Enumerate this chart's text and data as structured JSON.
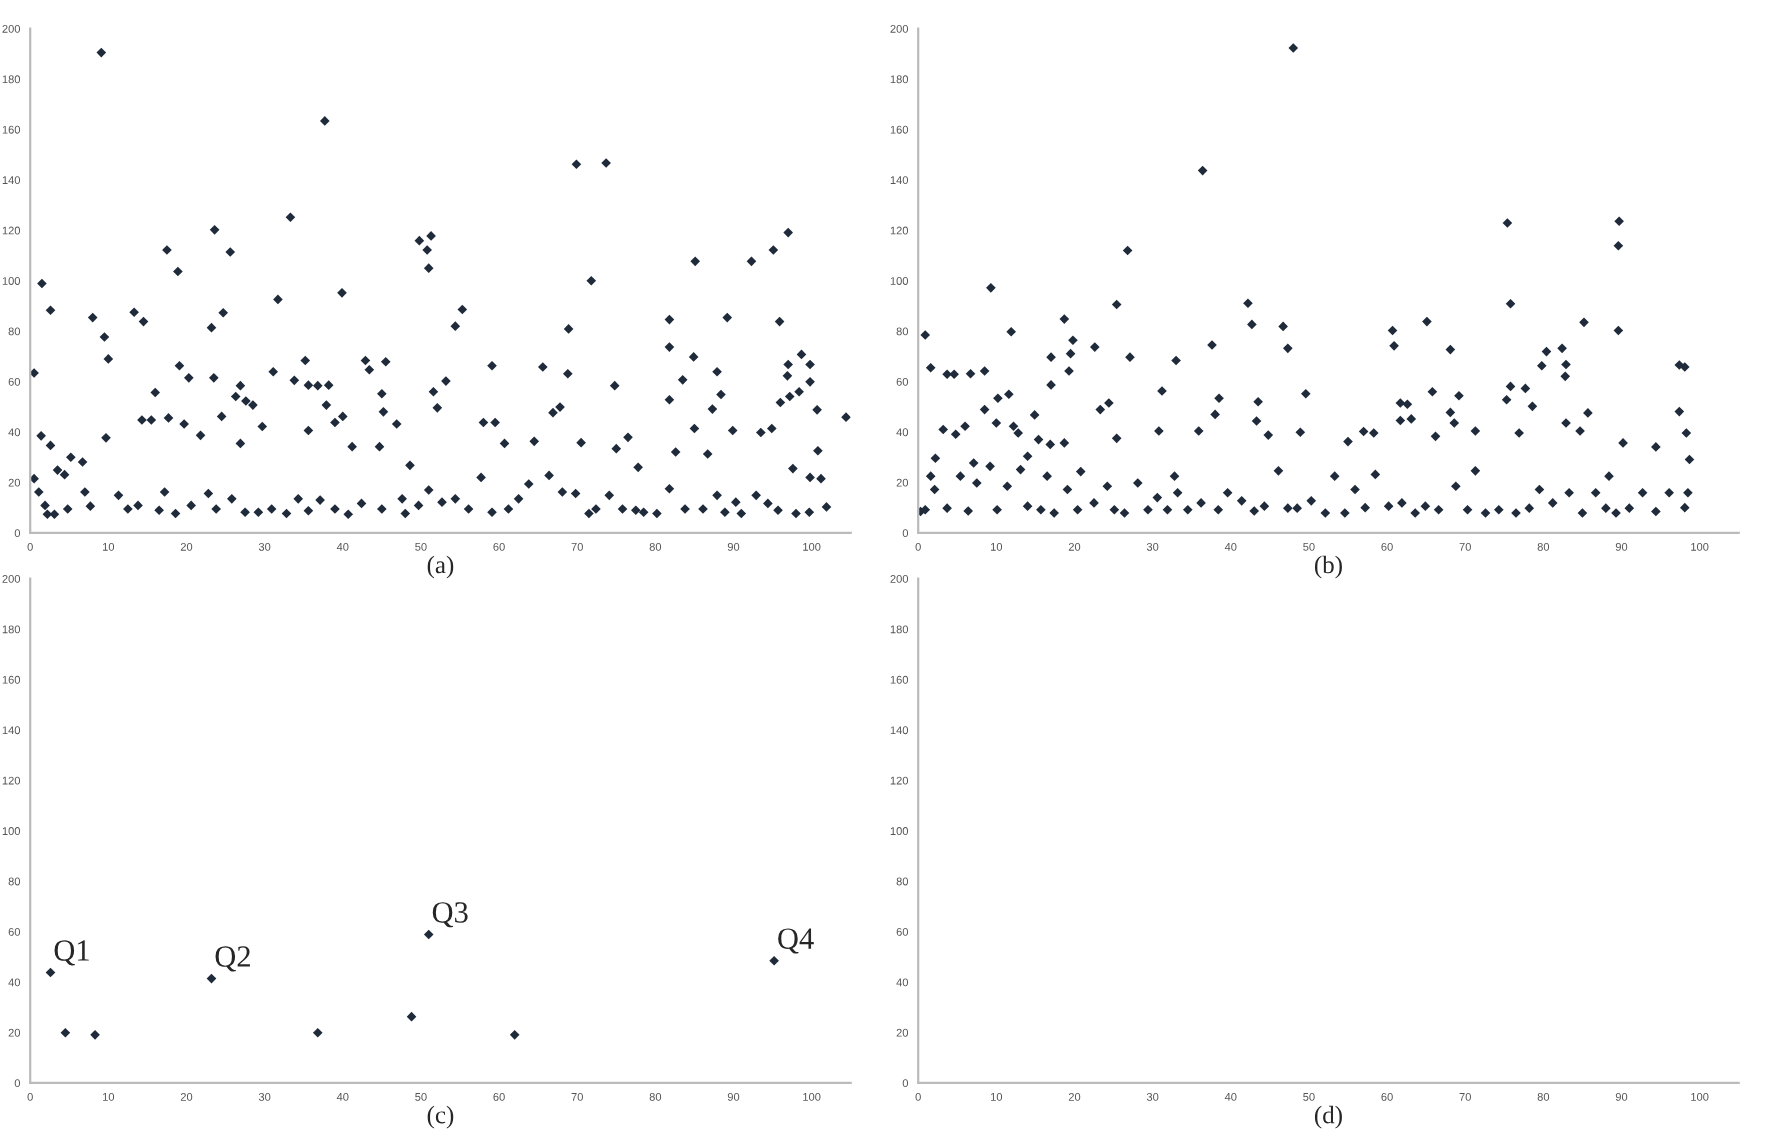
{
  "chart_data": [
    {
      "type": "scatter",
      "xlabel": "(a)",
      "marker": "diamond",
      "color": "#1f2a3a",
      "grid": false,
      "xlim": [
        0,
        105
      ],
      "ylim": [
        0,
        200
      ],
      "xticks": [
        0,
        10,
        20,
        30,
        40,
        50,
        60,
        70,
        80,
        90,
        100
      ],
      "yticks": [
        0,
        20,
        40,
        60,
        80,
        100,
        120,
        140,
        160,
        180,
        200
      ],
      "x": [
        9.1,
        37.7,
        69.9,
        73.7,
        33.3,
        23.6,
        97.0,
        51.3,
        49.8,
        50.8,
        17.5,
        25.6,
        95.1,
        51.0,
        85.1,
        92.3,
        18.9,
        1.5,
        71.8,
        39.9,
        31.7,
        55.3,
        2.6,
        13.3,
        24.7,
        89.2,
        8.0,
        14.5,
        81.8,
        95.9,
        54.4,
        23.2,
        68.9,
        9.5,
        81.8,
        98.7,
        10.0,
        84.9,
        35.2,
        42.9,
        45.5,
        97.0,
        99.8,
        19.1,
        59.1,
        65.6,
        43.4,
        87.9,
        31.1,
        0.5,
        68.8,
        96.9,
        20.3,
        23.5,
        33.8,
        53.2,
        83.5,
        99.8,
        26.9,
        36.8,
        38.2,
        35.6,
        74.8,
        98.4,
        16.0,
        51.6,
        45.0,
        88.4,
        97.2,
        26.3,
        27.6,
        81.8,
        96.0,
        37.9,
        28.5,
        67.8,
        52.1,
        87.3,
        100.7,
        45.2,
        66.9,
        24.5,
        40.0,
        17.7,
        104.4,
        14.3,
        15.5,
        58.0,
        59.5,
        46.9,
        39.0,
        19.7,
        85.0,
        35.6,
        89.9,
        29.7,
        93.5,
        1.4,
        9.7,
        21.8,
        76.5,
        60.7,
        64.5,
        2.6,
        44.7,
        26.9,
        41.2,
        94.9,
        100.8,
        75.0,
        82.6,
        5.2,
        70.5,
        86.7,
        48.6,
        97.6,
        77.8,
        3.5,
        57.7,
        51.0,
        0.5,
        1.1,
        1.9,
        2.2,
        3.1,
        4.4,
        4.8,
        6.7,
        7.0,
        7.7,
        11.3,
        12.5,
        13.8,
        16.5,
        17.2,
        18.6,
        20.6,
        22.8,
        23.8,
        25.8,
        27.5,
        29.2,
        30.9,
        32.8,
        34.3,
        35.6,
        37.1,
        39.0,
        40.7,
        42.4,
        45.0,
        47.6,
        48.0,
        49.7,
        52.7,
        54.4,
        56.1,
        59.1,
        61.2,
        62.5,
        63.8,
        66.4,
        68.1,
        69.8,
        71.5,
        72.4,
        74.1,
        75.8,
        77.5,
        78.5,
        80.2,
        81.8,
        83.8,
        86.1,
        87.9,
        88.9,
        90.3,
        91.0,
        92.9,
        94.4,
        95.7,
        98.0,
        99.7,
        101.9,
        99.8,
        101.2
      ],
      "values": [
        190.5,
        163.4,
        146.2,
        146.7,
        125.2,
        120.2,
        119.1,
        117.8,
        115.9,
        112.2,
        112.2,
        111.4,
        112.2,
        105.0,
        107.7,
        107.7,
        103.7,
        98.9,
        100,
        95.2,
        92.6,
        88.6,
        88.3,
        87.5,
        87.3,
        85.4,
        85.4,
        83.8,
        84.6,
        83.8,
        82.0,
        81.4,
        80.9,
        77.7,
        73.7,
        70.8,
        69.0,
        69.8,
        68.4,
        68.4,
        67.9,
        66.8,
        66.8,
        66.3,
        66.3,
        65.8,
        64.7,
        63.9,
        63.9,
        63.4,
        63.1,
        62.3,
        61.5,
        61.5,
        60.5,
        60.2,
        60.7,
        59.9,
        58.4,
        58.4,
        58.6,
        58.6,
        58.4,
        56.0,
        55.7,
        56.0,
        55.2,
        54.9,
        54.1,
        54.1,
        52.3,
        52.8,
        51.7,
        50.7,
        50.7,
        49.9,
        49.6,
        49.1,
        48.8,
        48.0,
        47.7,
        46.2,
        46.2,
        45.6,
        45.9,
        44.8,
        44.8,
        43.8,
        43.8,
        43.2,
        43.8,
        43.2,
        41.4,
        40.6,
        40.6,
        42.2,
        39.8,
        38.5,
        37.7,
        38.7,
        37.9,
        35.5,
        36.3,
        34.7,
        34.2,
        35.5,
        34.2,
        41.4,
        32.6,
        33.4,
        32.1,
        30.0,
        35.8,
        31.3,
        26.8,
        25.5,
        26.0,
        24.9,
        22.0,
        17.0,
        21.5,
        16.2,
        10.9,
        7.4,
        7.4,
        23.1,
        9.5,
        28.1,
        16.2,
        10.6,
        14.9,
        9.5,
        10.9,
        9.0,
        16.2,
        7.7,
        10.9,
        15.6,
        9.5,
        13.5,
        8.2,
        8.2,
        9.5,
        7.7,
        13.5,
        8.8,
        13.0,
        9.5,
        7.4,
        11.7,
        9.5,
        13.5,
        7.7,
        10.9,
        12.2,
        13.5,
        9.5,
        8.2,
        9.5,
        13.5,
        19.4,
        22.8,
        16.2,
        15.6,
        7.7,
        9.5,
        14.9,
        9.5,
        9.0,
        8.2,
        7.7,
        17.5,
        9.5,
        9.5,
        14.9,
        8.2,
        12.2,
        7.7,
        14.9,
        11.7,
        9.0,
        7.7,
        8.2,
        10.3,
        22.0,
        21.5
      ]
    },
    {
      "type": "scatter",
      "xlabel": "(b)",
      "marker": "diamond",
      "color": "#1f2a3a",
      "grid": false,
      "xlim": [
        0,
        105
      ],
      "ylim": [
        0,
        200
      ],
      "xticks": [
        0,
        10,
        20,
        30,
        40,
        50,
        60,
        70,
        80,
        90,
        100
      ],
      "yticks": [
        0,
        20,
        40,
        60,
        80,
        100,
        120,
        140,
        160,
        180,
        200
      ],
      "x": [
        48.0,
        36.4,
        75.4,
        89.7,
        89.6,
        26.8,
        9.3,
        25.4,
        42.2,
        75.8,
        42.7,
        65.1,
        85.2,
        18.7,
        46.7,
        60.7,
        89.6,
        11.9,
        0.9,
        47.3,
        60.9,
        19.8,
        22.6,
        37.6,
        68.1,
        80.4,
        82.4,
        19.5,
        27.1,
        33.0,
        17.0,
        82.9,
        79.8,
        97.4,
        98.1,
        1.6,
        3.7,
        4.6,
        82.8,
        8.5,
        19.3,
        6.7,
        17.0,
        75.8,
        77.7,
        31.2,
        65.8,
        11.6,
        49.6,
        69.2,
        10.2,
        43.5,
        38.5,
        61.7,
        62.6,
        75.3,
        24.4,
        78.6,
        23.3,
        43.3,
        97.4,
        85.7,
        68.1,
        14.9,
        38.0,
        8.5,
        57.0,
        58.3,
        63.1,
        61.7,
        68.6,
        84.7,
        82.9,
        3.2,
        4.8,
        6.0,
        10.0,
        12.2,
        12.8,
        15.4,
        16.9,
        18.7,
        25.4,
        30.8,
        35.9,
        44.8,
        48.9,
        55.0,
        66.2,
        71.3,
        76.9,
        90.2,
        94.4,
        98.3,
        2.2,
        0.3,
        0.9,
        1.6,
        2.1,
        3.7,
        5.4,
        6.4,
        7.5,
        9.2,
        10.1,
        11.4,
        13.1,
        14.0,
        15.7,
        16.5,
        17.4,
        19.1,
        20.4,
        22.5,
        24.2,
        25.1,
        26.4,
        28.1,
        29.4,
        30.6,
        31.9,
        33.2,
        34.5,
        36.2,
        38.4,
        39.6,
        41.4,
        43.0,
        44.3,
        46.1,
        47.3,
        48.5,
        50.3,
        52.1,
        53.3,
        54.6,
        55.9,
        57.2,
        60.2,
        61.9,
        63.6,
        64.9,
        66.6,
        68.8,
        70.3,
        72.6,
        74.3,
        76.5,
        78.2,
        79.5,
        81.2,
        83.3,
        85.0,
        86.7,
        88.0,
        89.3,
        91.0,
        92.7,
        94.4,
        96.1,
        98.1,
        98.5,
        98.7,
        88.4,
        71.3,
        58.5,
        32.8,
        20.8,
        14.0,
        7.1
      ],
      "values": [
        192.3,
        143.7,
        122.9,
        123.6,
        113.9,
        112.0,
        97.2,
        90.6,
        91.1,
        90.9,
        82.7,
        83.8,
        83.5,
        84.8,
        81.9,
        80.3,
        80.3,
        79.8,
        78.5,
        73.2,
        74.2,
        76.4,
        73.7,
        74.5,
        72.7,
        71.9,
        73.2,
        71.1,
        69.7,
        68.4,
        69.7,
        66.8,
        66.3,
        66.6,
        65.8,
        65.5,
        62.9,
        62.9,
        62.1,
        64.2,
        64.2,
        63.1,
        58.7,
        58.1,
        57.3,
        56.3,
        56.0,
        55.0,
        55.2,
        54.4,
        53.4,
        52.0,
        53.4,
        51.5,
        51.0,
        52.8,
        51.5,
        50.2,
        48.9,
        44.4,
        48.1,
        47.6,
        47.8,
        46.8,
        47.0,
        48.9,
        40.2,
        39.6,
        45.2,
        44.6,
        43.6,
        40.4,
        43.6,
        41.0,
        39.1,
        42.3,
        43.6,
        42.3,
        39.6,
        37.0,
        35.1,
        35.7,
        37.5,
        40.4,
        40.4,
        38.8,
        39.9,
        36.2,
        38.3,
        40.4,
        39.6,
        35.7,
        34.1,
        39.6,
        29.6,
        8.5,
        9.2,
        22.5,
        17.2,
        9.8,
        22.5,
        8.7,
        19.8,
        26.4,
        9.2,
        18.5,
        25.1,
        10.6,
        9.2,
        22.5,
        7.9,
        17.2,
        9.2,
        11.9,
        18.5,
        9.2,
        7.9,
        19.8,
        9.2,
        14.0,
        9.2,
        15.9,
        9.2,
        11.9,
        9.2,
        15.9,
        12.7,
        8.7,
        10.6,
        24.6,
        9.8,
        9.8,
        12.7,
        7.9,
        22.5,
        7.9,
        17.2,
        10.0,
        10.6,
        11.9,
        7.9,
        10.6,
        9.2,
        18.5,
        9.2,
        7.9,
        9.2,
        7.9,
        9.8,
        17.2,
        11.9,
        15.9,
        7.9,
        15.9,
        9.8,
        7.9,
        9.8,
        15.9,
        8.5,
        15.9,
        10.0,
        15.9,
        29.1,
        22.5,
        24.6,
        23.2,
        22.5,
        24.3,
        30.4,
        27.7
      ]
    },
    {
      "type": "scatter",
      "xlabel": "(c)",
      "marker": "diamond",
      "color": "#1f2a3a",
      "grid": false,
      "xlim": [
        0,
        105
      ],
      "ylim": [
        0,
        200
      ],
      "xticks": [
        0,
        10,
        20,
        30,
        40,
        50,
        60,
        70,
        80,
        90,
        100
      ],
      "yticks": [
        0,
        20,
        40,
        60,
        80,
        100,
        120,
        140,
        160,
        180,
        200
      ],
      "x": [
        2.6,
        4.5,
        8.3,
        23.2,
        36.8,
        48.8,
        51.0,
        62.0,
        95.2
      ],
      "values": [
        43.8,
        19.9,
        19.1,
        41.4,
        19.9,
        26.3,
        58.9,
        19.1,
        48.5
      ],
      "annotations": [
        {
          "text": "Q1",
          "x": 2.6,
          "y": 43.8
        },
        {
          "text": "Q2",
          "x": 23.2,
          "y": 41.4
        },
        {
          "text": "Q3",
          "x": 51.0,
          "y": 58.9
        },
        {
          "text": "Q4",
          "x": 95.2,
          "y": 48.5
        }
      ]
    },
    {
      "type": "scatter",
      "xlabel": "(d)",
      "grid": false,
      "xlim": [
        0,
        105
      ],
      "ylim": [
        0,
        200
      ],
      "xticks": [
        0,
        10,
        20,
        30,
        40,
        50,
        60,
        70,
        80,
        90,
        100
      ],
      "yticks": [
        0,
        20,
        40,
        60,
        80,
        100,
        120,
        140,
        160,
        180,
        200
      ],
      "tick_labels": true
    }
  ]
}
